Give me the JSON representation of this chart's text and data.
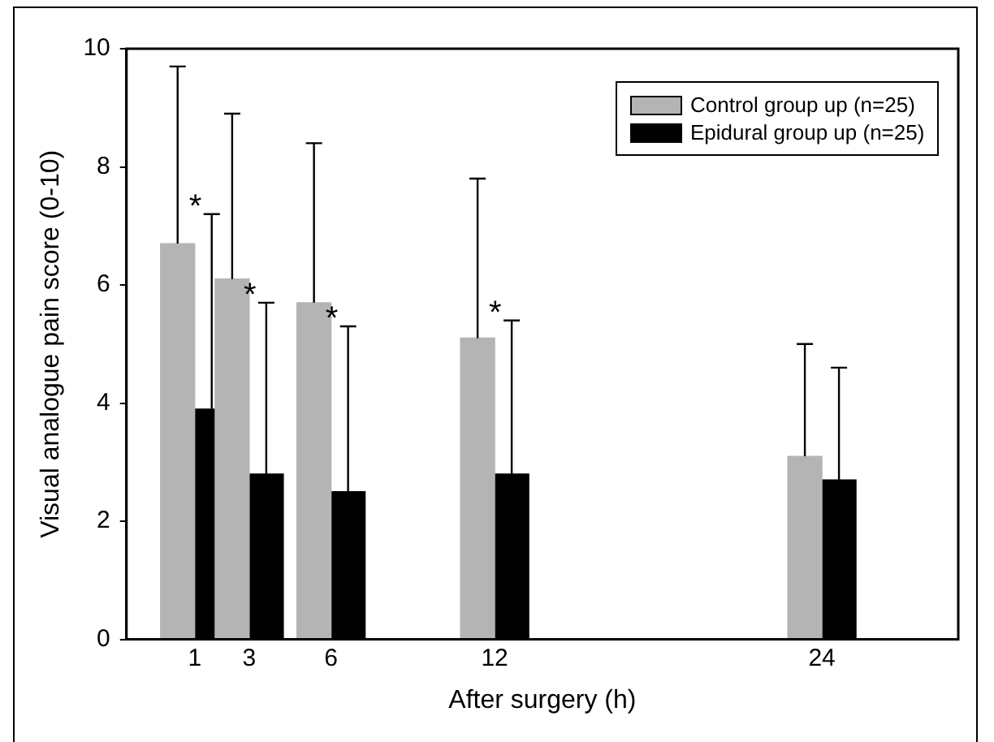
{
  "chart_data": {
    "type": "bar",
    "xlabel": "After surgery (h)",
    "ylabel": "Visual analogue pain score (0-10)",
    "x": [
      1,
      3,
      6,
      12,
      24
    ],
    "series": [
      {
        "name": "Control group up (n=25)",
        "color": "#b4b4b4",
        "values": [
          6.7,
          6.1,
          5.7,
          5.1,
          3.1
        ],
        "errors": [
          [
            6.7,
            9.7
          ],
          [
            6.1,
            8.9
          ],
          [
            5.7,
            8.4
          ],
          [
            5.1,
            7.8
          ],
          [
            3.1,
            5.0
          ]
        ]
      },
      {
        "name": "Epidural group up (n=25)",
        "color": "#000000",
        "values": [
          3.9,
          2.8,
          2.5,
          2.8,
          2.7
        ],
        "errors": [
          [
            3.9,
            7.2
          ],
          [
            2.8,
            5.7
          ],
          [
            2.5,
            5.3
          ],
          [
            2.8,
            5.4
          ],
          [
            2.7,
            4.6
          ]
        ]
      }
    ],
    "xlim": [
      -1.5,
      29
    ],
    "xticks": [
      1,
      3,
      6,
      12,
      24
    ],
    "ylim": [
      0,
      10
    ],
    "yticks": [
      0,
      2,
      4,
      6,
      8,
      10
    ],
    "legend": "top right",
    "annotations": [
      "*",
      "*",
      "*",
      "*"
    ]
  }
}
